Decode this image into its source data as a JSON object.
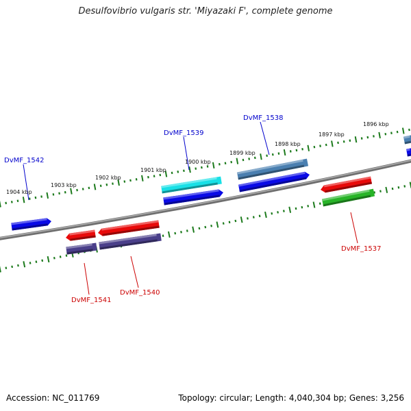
{
  "header": {
    "title": "Desulfovibrio vulgaris str. 'Miyazaki F', complete genome"
  },
  "footer": {
    "accession": "Accession: NC_011769",
    "summary": "Topology: circular; Length: 4,040,304 bp; Genes: 3,256"
  },
  "ruler_labels": [
    {
      "id": "1904",
      "text": "1904 kbp"
    },
    {
      "id": "1903",
      "text": "1903 kbp"
    },
    {
      "id": "1902",
      "text": "1902 kbp"
    },
    {
      "id": "1901",
      "text": "1901 kbp"
    },
    {
      "id": "1900",
      "text": "1900 kbp"
    },
    {
      "id": "1899",
      "text": "1899 kbp"
    },
    {
      "id": "1898",
      "text": "1898 kbp"
    },
    {
      "id": "1897",
      "text": "1897 kbp"
    },
    {
      "id": "1896",
      "text": "1896 kbp"
    }
  ],
  "gene_labels": [
    {
      "id": "DvMF_1542",
      "text": "DvMF_1542",
      "color": "#0000cc"
    },
    {
      "id": "DvMF_1539",
      "text": "DvMF_1539",
      "color": "#0000cc"
    },
    {
      "id": "DvMF_1538",
      "text": "DvMF_1538",
      "color": "#0000cc"
    },
    {
      "id": "DvMF_1541",
      "text": "DvMF_1541",
      "color": "#cc0000"
    },
    {
      "id": "DvMF_1540",
      "text": "DvMF_1540",
      "color": "#cc0000"
    },
    {
      "id": "DvMF_1537",
      "text": "DvMF_1537",
      "color": "#cc0000"
    }
  ],
  "feature_colors": {
    "blue": "#0a0ae6",
    "cyan": "#18e0e6",
    "steel_blue": "#4a7fb0",
    "red": "#e80a0a",
    "dark_purple": "#4a3f8a",
    "green": "#28b428",
    "backbone": "#7a7a7a",
    "ruler": "#1c7a1c"
  }
}
